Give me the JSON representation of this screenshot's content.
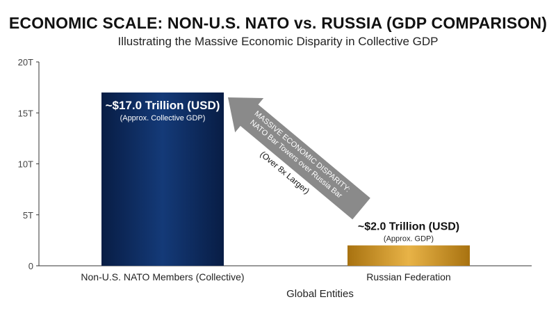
{
  "title": "ECONOMIC SCALE: NON-U.S. NATO vs. RUSSIA (GDP COMPARISON)",
  "subtitle": "Illustrating the Massive Economic Disparity in Collective GDP",
  "chart_data": {
    "type": "bar",
    "categories": [
      "Non-U.S. NATO Members (Collective)",
      "Russian Federation"
    ],
    "values": [
      17.0,
      2.0
    ],
    "unit": "Trillion USD",
    "xlabel": "Global Entities",
    "ylabel": "",
    "ylim": [
      0,
      20
    ],
    "yticks": [
      {
        "value": 0,
        "label": "0"
      },
      {
        "value": 5,
        "label": "5T"
      },
      {
        "value": 10,
        "label": "10T"
      },
      {
        "value": 15,
        "label": "15T"
      },
      {
        "value": 20,
        "label": "20T"
      }
    ],
    "grid": false,
    "bar_colors": [
      "#0d2a5e",
      "#c98f1c"
    ],
    "data_labels": [
      {
        "main": "~$17.0 Trillion (USD)",
        "sub": "(Approx. Collective GDP)"
      },
      {
        "main": "~$2.0 Trillion (USD)",
        "sub": "(Approx. GDP)"
      }
    ],
    "annotation": {
      "lines": [
        "MASSIVE ECONOMIC DISPARITY:",
        "NATO Bar Towers over Russia Bar",
        "(Over 8x Larger)"
      ],
      "arrow_color": "#8a8a8a"
    }
  }
}
